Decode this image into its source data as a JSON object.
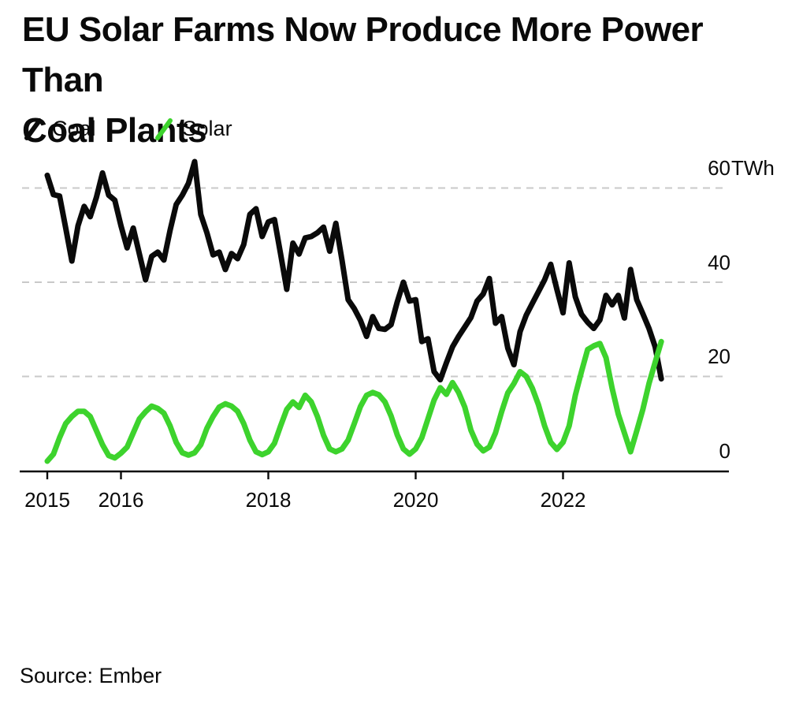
{
  "title": {
    "line1": "EU Solar Farms Now Produce More Power Than",
    "line2": "Coal Plants"
  },
  "legend": {
    "items": [
      {
        "label": "Coal",
        "color": "#0a0a0a"
      },
      {
        "label": "Solar",
        "color": "#3dd32d"
      }
    ]
  },
  "y_axis": {
    "unit": "TWh",
    "tick_labels": [
      "60",
      "40",
      "20",
      "0"
    ],
    "tick_values": [
      60,
      40,
      20,
      0
    ]
  },
  "x_axis": {
    "labels": [
      "2015",
      "2016",
      "2018",
      "2020",
      "2022"
    ],
    "tick_years": [
      2015,
      2016,
      2018,
      2020,
      2022
    ]
  },
  "source": "Source: Ember",
  "chart_data": {
    "type": "line",
    "title": "EU Solar Farms Now Produce More Power Than Coal Plants",
    "x_unit": "month",
    "x_start": "2015-01",
    "x_end": "2023-05",
    "ylabel": "TWh",
    "ylim": [
      0,
      66
    ],
    "grid": "dashed horizontal at 20, 40, 60",
    "legend_position": "top-left",
    "series": [
      {
        "name": "Coal",
        "color": "#0a0a0a",
        "values": [
          62.7,
          58.6,
          58.3,
          51.5,
          44.5,
          52,
          56.1,
          53.9,
          58,
          63.2,
          58.5,
          57.4,
          52,
          47.3,
          51.5,
          46,
          40.5,
          45.5,
          46.4,
          44.7,
          51,
          56.5,
          58.5,
          61,
          65.6,
          54.4,
          50.5,
          45.8,
          46.4,
          42.7,
          46.1,
          45,
          48,
          54.4,
          55.6,
          49.7,
          52.8,
          53.3,
          46,
          38.5,
          48.3,
          46,
          49.4,
          49.7,
          50.5,
          51.7,
          46.6,
          52.5,
          44.7,
          36.3,
          34.4,
          31.9,
          28.5,
          32.7,
          30.2,
          30,
          31,
          35.8,
          40,
          36,
          36.3,
          27.4,
          28,
          21,
          19.3,
          22.9,
          26.3,
          28.5,
          30.5,
          32.5,
          36,
          37.5,
          40.8,
          31.3,
          32.7,
          26,
          22.5,
          29.5,
          33,
          35.5,
          38,
          40.5,
          43.8,
          38.5,
          33.5,
          44.1,
          36.9,
          33.2,
          31.5,
          30.2,
          32,
          37.2,
          35.2,
          37.2,
          32.4,
          42.7,
          36.3,
          33.3,
          30.2,
          26.3,
          19.5
        ]
      },
      {
        "name": "Solar",
        "color": "#3dd32d",
        "values": [
          2,
          3.5,
          7,
          10,
          11.5,
          12.6,
          12.6,
          11.5,
          8.5,
          5.5,
          3.2,
          2.7,
          3.7,
          5,
          8,
          11,
          12.5,
          13.7,
          13.2,
          12.2,
          9.5,
          6,
          3.8,
          3.3,
          3.8,
          5.5,
          9,
          11.5,
          13.5,
          14.2,
          13.7,
          12.6,
          10,
          6.5,
          4,
          3.4,
          4,
          5.8,
          9.5,
          13,
          14.6,
          13.4,
          16,
          14.6,
          11.5,
          7.5,
          4.6,
          4,
          4.6,
          6.5,
          10,
          13.6,
          16,
          16.6,
          16.1,
          14.6,
          11.6,
          7.6,
          4.6,
          3.5,
          4.6,
          7,
          11,
          15,
          17.6,
          16.2,
          18.7,
          16.6,
          13.5,
          8.6,
          5.6,
          4.2,
          5,
          8,
          12.5,
          16.5,
          18.5,
          21,
          20,
          17.5,
          14,
          9.5,
          6,
          4.5,
          6,
          9.5,
          16,
          21,
          25.7,
          26.5,
          27,
          24,
          17.5,
          12,
          8,
          4,
          8.4,
          13,
          18.5,
          23,
          27.4
        ]
      }
    ]
  }
}
